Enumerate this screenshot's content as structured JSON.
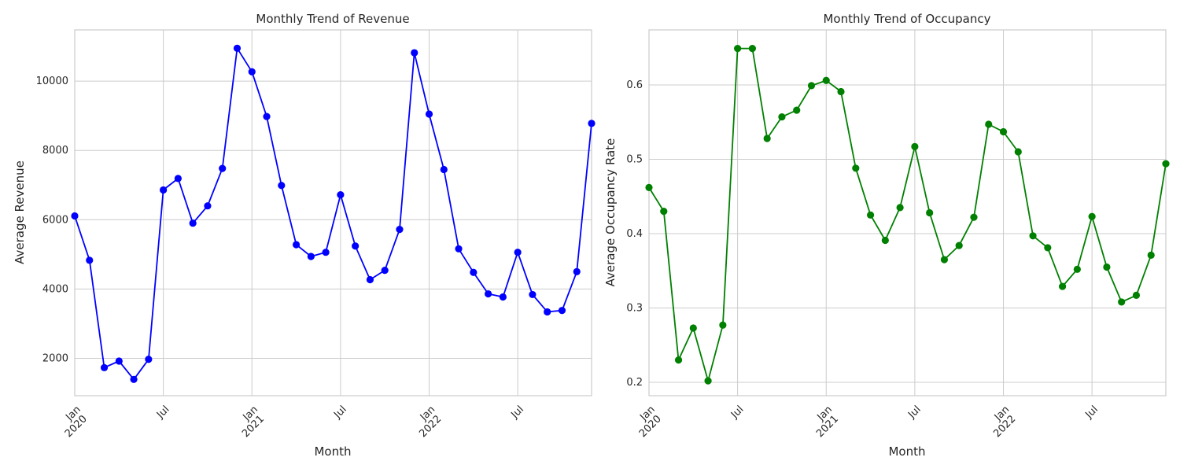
{
  "chart_data": [
    {
      "type": "line",
      "title": "Monthly Trend of Revenue",
      "xlabel": "Month",
      "ylabel": "Average Revenue",
      "color": "#0000ff",
      "grid": true,
      "x": [
        "2020-01",
        "2020-02",
        "2020-03",
        "2020-04",
        "2020-05",
        "2020-06",
        "2020-07",
        "2020-08",
        "2020-09",
        "2020-10",
        "2020-11",
        "2020-12",
        "2021-01",
        "2021-02",
        "2021-03",
        "2021-04",
        "2021-05",
        "2021-06",
        "2021-07",
        "2021-08",
        "2021-09",
        "2021-10",
        "2021-11",
        "2021-12",
        "2022-01",
        "2022-02",
        "2022-03",
        "2022-04",
        "2022-05",
        "2022-06",
        "2022-07",
        "2022-08",
        "2022-09",
        "2022-10",
        "2022-11",
        "2022-12"
      ],
      "values": [
        6110,
        4830,
        1730,
        1920,
        1390,
        1970,
        6860,
        7190,
        5900,
        6400,
        7480,
        10950,
        10270,
        8980,
        6990,
        5280,
        4940,
        5060,
        6720,
        5240,
        4270,
        4540,
        5720,
        10820,
        9050,
        7450,
        5160,
        4480,
        3860,
        3770,
        5060,
        3840,
        3340,
        3380,
        4500,
        8780
      ],
      "ylim": [
        920,
        11480
      ],
      "yticks": [
        2000,
        4000,
        6000,
        8000,
        10000
      ],
      "xtick_labels": [
        {
          "month": "2020-01",
          "label": "Jan",
          "sub": "2020"
        },
        {
          "month": "2020-07",
          "label": "Jul",
          "sub": ""
        },
        {
          "month": "2021-01",
          "label": "Jan",
          "sub": "2021"
        },
        {
          "month": "2021-07",
          "label": "Jul",
          "sub": ""
        },
        {
          "month": "2022-01",
          "label": "Jan",
          "sub": "2022"
        },
        {
          "month": "2022-07",
          "label": "Jul",
          "sub": ""
        }
      ]
    },
    {
      "type": "line",
      "title": "Monthly Trend of Occupancy",
      "xlabel": "Month",
      "ylabel": "Average Occupancy Rate",
      "color": "#008000",
      "grid": true,
      "x": [
        "2020-01",
        "2020-02",
        "2020-03",
        "2020-04",
        "2020-05",
        "2020-06",
        "2020-07",
        "2020-08",
        "2020-09",
        "2020-10",
        "2020-11",
        "2020-12",
        "2021-01",
        "2021-02",
        "2021-03",
        "2021-04",
        "2021-05",
        "2021-06",
        "2021-07",
        "2021-08",
        "2021-09",
        "2021-10",
        "2021-11",
        "2021-12",
        "2022-01",
        "2022-02",
        "2022-03",
        "2022-04",
        "2022-05",
        "2022-06",
        "2022-07",
        "2022-08",
        "2022-09",
        "2022-10",
        "2022-11",
        "2022-12"
      ],
      "values": [
        0.462,
        0.43,
        0.23,
        0.273,
        0.202,
        0.277,
        0.649,
        0.649,
        0.528,
        0.557,
        0.566,
        0.599,
        0.606,
        0.591,
        0.488,
        0.425,
        0.391,
        0.435,
        0.517,
        0.428,
        0.365,
        0.384,
        0.422,
        0.547,
        0.537,
        0.51,
        0.397,
        0.381,
        0.329,
        0.352,
        0.423,
        0.355,
        0.308,
        0.317,
        0.371,
        0.494
      ],
      "ylim": [
        0.182,
        0.674
      ],
      "yticks": [
        0.2,
        0.3,
        0.4,
        0.5,
        0.6
      ],
      "xtick_labels": [
        {
          "month": "2020-01",
          "label": "Jan",
          "sub": "2020"
        },
        {
          "month": "2020-07",
          "label": "Jul",
          "sub": ""
        },
        {
          "month": "2021-01",
          "label": "Jan",
          "sub": "2021"
        },
        {
          "month": "2021-07",
          "label": "Jul",
          "sub": ""
        },
        {
          "month": "2022-01",
          "label": "Jan",
          "sub": "2022"
        },
        {
          "month": "2022-07",
          "label": "Jul",
          "sub": ""
        }
      ]
    }
  ]
}
